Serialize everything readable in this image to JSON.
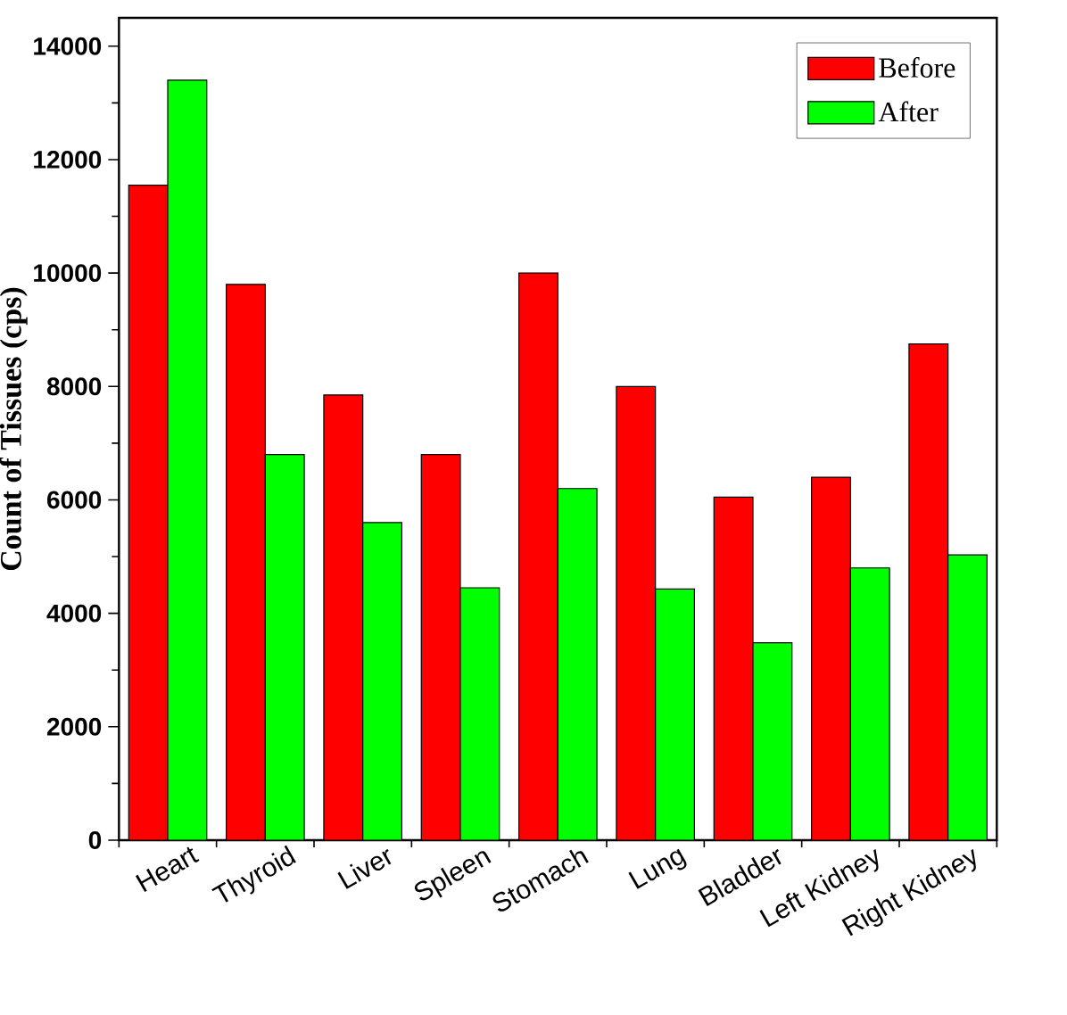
{
  "chart_data": {
    "type": "bar",
    "ylabel": "Count of Tissues (cps)",
    "categories": [
      "Heart",
      "Thyroid",
      "Liver",
      "Spleen",
      "Stomach",
      "Lung",
      "Bladder",
      "Left Kidney",
      "Right Kidney"
    ],
    "series": [
      {
        "name": "Before",
        "color": "#ff0000",
        "values": [
          11550,
          9800,
          7850,
          6800,
          10000,
          8000,
          6050,
          6400,
          8750
        ]
      },
      {
        "name": "After",
        "color": "#00ff00",
        "values": [
          13400,
          6800,
          5600,
          4450,
          6200,
          4430,
          3480,
          4800,
          5030
        ]
      }
    ],
    "ylim": [
      0,
      14500
    ],
    "yticks": [
      0,
      2000,
      4000,
      6000,
      8000,
      10000,
      12000,
      14000
    ],
    "legend": "top right",
    "grid": false
  }
}
